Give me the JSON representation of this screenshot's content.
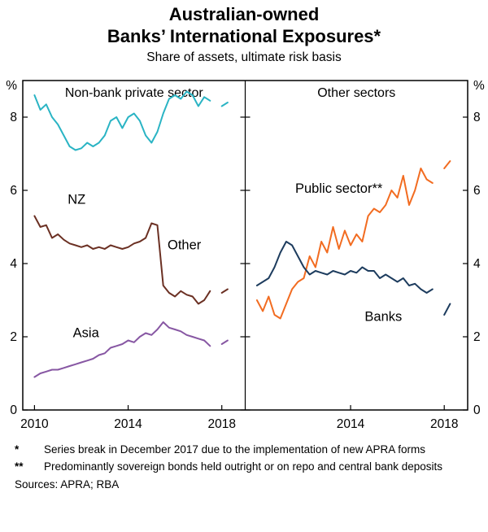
{
  "title": {
    "line1": "Australian-owned",
    "line2": "Banks’ International Exposures*",
    "subtitle": "Share of assets, ultimate risk basis"
  },
  "chart_data": {
    "type": "line",
    "unit": "%",
    "xlim": [
      2009.5,
      2019
    ],
    "ylim": [
      0,
      9
    ],
    "yticks": [
      0,
      2,
      4,
      6,
      8
    ],
    "x_start": 2010,
    "x_step": 0.25,
    "series_break_note": "gap at December 2017",
    "panels": [
      {
        "title": "Non-bank private sector",
        "xlabels": [
          2010,
          2014,
          2018
        ],
        "series": [
          {
            "name": "NZ",
            "color": "#2ab4c4",
            "label": {
              "text": "NZ",
              "x": 2011.8,
              "y": 5.75
            },
            "values": [
              8.6,
              8.2,
              8.35,
              8.0,
              7.8,
              7.5,
              7.2,
              7.1,
              7.15,
              7.3,
              7.2,
              7.3,
              7.5,
              7.9,
              8.0,
              7.7,
              8.0,
              8.1,
              7.9,
              7.5,
              7.3,
              7.6,
              8.1,
              8.5,
              8.6,
              8.5,
              8.7,
              8.6,
              8.3,
              8.55,
              8.45,
              null,
              8.3,
              8.4
            ]
          },
          {
            "name": "Other",
            "color": "#6b3023",
            "label": {
              "text": "Other",
              "x": 2016.4,
              "y": 4.5
            },
            "values": [
              5.3,
              5.0,
              5.05,
              4.7,
              4.8,
              4.65,
              4.55,
              4.5,
              4.45,
              4.5,
              4.4,
              4.45,
              4.4,
              4.5,
              4.45,
              4.4,
              4.45,
              4.55,
              4.6,
              4.7,
              5.1,
              5.05,
              3.4,
              3.2,
              3.1,
              3.25,
              3.15,
              3.1,
              2.9,
              3.0,
              3.25,
              null,
              3.2,
              3.3
            ]
          },
          {
            "name": "Asia",
            "color": "#8757a3",
            "label": {
              "text": "Asia",
              "x": 2012.2,
              "y": 2.1
            },
            "values": [
              0.9,
              1.0,
              1.05,
              1.1,
              1.1,
              1.15,
              1.2,
              1.25,
              1.3,
              1.35,
              1.4,
              1.5,
              1.55,
              1.7,
              1.75,
              1.8,
              1.9,
              1.85,
              2.0,
              2.1,
              2.05,
              2.2,
              2.4,
              2.25,
              2.2,
              2.15,
              2.05,
              2.0,
              1.95,
              1.9,
              1.75,
              null,
              1.8,
              1.9
            ]
          }
        ]
      },
      {
        "title": "Other sectors",
        "xlabels": [
          2014,
          2018
        ],
        "series": [
          {
            "name": "Public sector",
            "color": "#f26c21",
            "label": {
              "text": "Public sector**",
              "x": 2013.5,
              "y": 6.05
            },
            "values": [
              3.0,
              2.7,
              3.1,
              2.6,
              2.5,
              2.9,
              3.3,
              3.5,
              3.6,
              4.2,
              3.9,
              4.6,
              4.3,
              5.0,
              4.4,
              4.9,
              4.5,
              4.8,
              4.6,
              5.3,
              5.5,
              5.4,
              5.6,
              6.0,
              5.8,
              6.4,
              5.6,
              6.0,
              6.6,
              6.3,
              6.2,
              null,
              6.6,
              6.8
            ]
          },
          {
            "name": "Banks",
            "color": "#1d3c5e",
            "label": {
              "text": "Banks",
              "x": 2015.4,
              "y": 2.55
            },
            "values": [
              3.4,
              3.5,
              3.6,
              3.9,
              4.3,
              4.6,
              4.5,
              4.2,
              3.9,
              3.7,
              3.8,
              3.75,
              3.7,
              3.8,
              3.75,
              3.7,
              3.8,
              3.75,
              3.9,
              3.8,
              3.8,
              3.6,
              3.7,
              3.6,
              3.5,
              3.6,
              3.4,
              3.45,
              3.3,
              3.2,
              3.3,
              null,
              2.6,
              2.9
            ]
          }
        ]
      }
    ]
  },
  "footnotes": [
    {
      "marker": "*",
      "text": "Series break in December 2017 due to the implementation of new APRA forms"
    },
    {
      "marker": "**",
      "text": "Predominantly sovereign bonds held outright or on repo and central bank deposits"
    }
  ],
  "sources": "Sources: APRA; RBA"
}
